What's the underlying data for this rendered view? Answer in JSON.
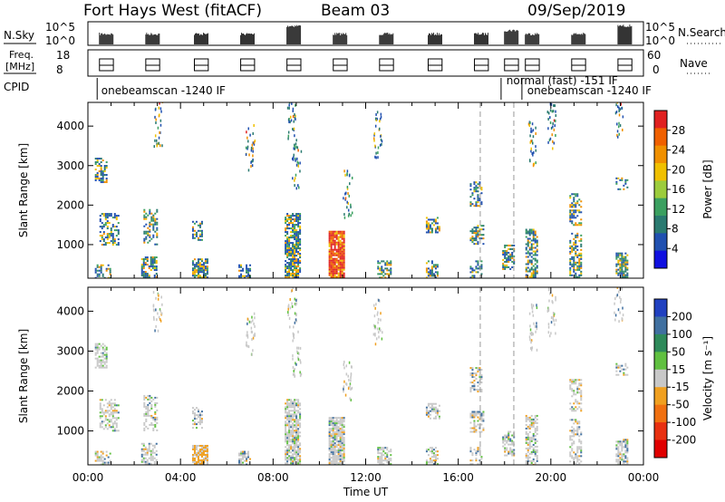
{
  "header": {
    "station": "Fort Hays West (fitACF)",
    "beam": "Beam 03",
    "date": "09/Sep/2019"
  },
  "summary_panels": {
    "nsky_label": "N.Sky",
    "nsky_ticks": [
      "10^5",
      "10^0"
    ],
    "nsearch_label": "N.Search",
    "nsearch_ticks": [
      "10^5",
      "10^0"
    ],
    "freq_label_1": "Freq.",
    "freq_label_2": "[MHz]",
    "freq_ticks": [
      "18",
      "8"
    ],
    "nave_label": "Nave",
    "nave_ticks": [
      "60",
      "0"
    ],
    "cpid_label": "CPID",
    "cpid_entries": [
      {
        "text": "onebeamscan -1240 IF",
        "hour": 0.5,
        "row": 1
      },
      {
        "text": "normal (fast) -151 IF",
        "hour": 18.0,
        "row": 0
      },
      {
        "text": "onebeamscan -1240 IF",
        "hour": 18.9,
        "row": 1
      }
    ]
  },
  "chart_data": [
    {
      "type": "heatmap",
      "name": "power",
      "ylabel": "Slant Range [km]",
      "yticks": [
        1000,
        2000,
        3000,
        4000
      ],
      "ylim": [
        150,
        4600
      ],
      "colorbar_label": "Power [dB]",
      "colorbar_ticks": [
        "28",
        "24",
        "20",
        "16",
        "12",
        "8",
        "4"
      ],
      "colorbar_colors": [
        "#e02020",
        "#f06000",
        "#f09000",
        "#f0c000",
        "#9ccc3c",
        "#3ba060",
        "#2a7a70",
        "#2050b0",
        "#1010e0"
      ]
    },
    {
      "type": "heatmap",
      "name": "velocity",
      "ylabel": "Slant Range [km]",
      "yticks": [
        1000,
        2000,
        3000,
        4000
      ],
      "ylim": [
        150,
        4600
      ],
      "colorbar_label": "Velocity [m s⁻¹]",
      "colorbar_ticks": [
        "200",
        "100",
        "50",
        "15",
        "-15",
        "-50",
        "-100",
        "-200"
      ],
      "colorbar_colors": [
        "#2040c0",
        "#4070a0",
        "#2e8a5a",
        "#60c040",
        "#c8c8c8",
        "#f0a020",
        "#f07010",
        "#e83010",
        "#e00000"
      ]
    }
  ],
  "time_axis": {
    "xlabel": "Time UT",
    "ticks": [
      "00:00",
      "04:00",
      "08:00",
      "12:00",
      "16:00",
      "20:00",
      "00:00"
    ],
    "xlim": [
      0,
      24
    ]
  }
}
